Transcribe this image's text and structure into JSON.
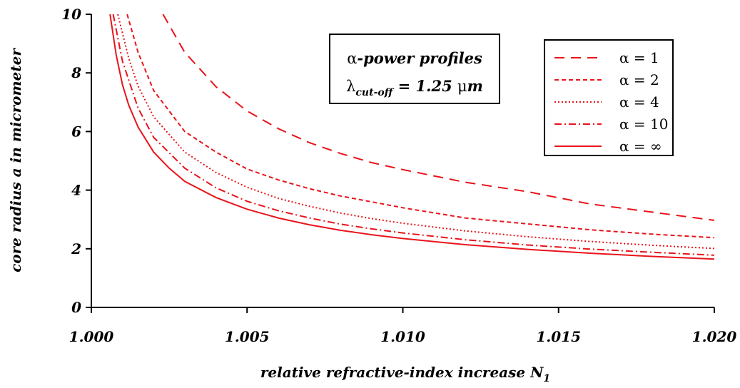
{
  "chart_data": {
    "type": "line",
    "xlabel": "relative refractive-index increase N",
    "xlabel_sub": "1",
    "ylabel": "core radius a in micrometer",
    "xlim": [
      1.0,
      1.02
    ],
    "ylim": [
      0,
      10
    ],
    "x_ticks": [
      1.0,
      1.005,
      1.01,
      1.015,
      1.02
    ],
    "x_tick_labels": [
      "1.000",
      "1.005",
      "1.010",
      "1.015",
      "1.020"
    ],
    "y_ticks": [
      0,
      2,
      4,
      6,
      8,
      10
    ],
    "y_tick_labels": [
      "0",
      "2",
      "4",
      "6",
      "8",
      "10"
    ],
    "grid": false,
    "legend_position": "top-right",
    "annotation": {
      "line1_symbol": "α",
      "line1_text": "-power profiles",
      "line2_symbol": "λ",
      "line2_sub": "cut-off",
      "line2_eq": " = 1.25 ",
      "line2_unit_mu": "μ",
      "line2_unit": "m"
    },
    "series": [
      {
        "name": "α = 1",
        "dash": "14,9",
        "x": [
          1.0023,
          1.003,
          1.004,
          1.005,
          1.006,
          1.007,
          1.008,
          1.009,
          1.01,
          1.012,
          1.014,
          1.016,
          1.018,
          1.02
        ],
        "y": [
          10.0,
          8.7,
          7.53,
          6.7,
          6.1,
          5.62,
          5.25,
          4.94,
          4.7,
          4.27,
          3.95,
          3.53,
          3.25,
          2.97
        ]
      },
      {
        "name": "α = 2",
        "dash": "6,4",
        "x": [
          1.00115,
          1.0015,
          1.002,
          1.003,
          1.004,
          1.005,
          1.006,
          1.007,
          1.008,
          1.009,
          1.01,
          1.012,
          1.014,
          1.016,
          1.018,
          1.02
        ],
        "y": [
          10.0,
          8.7,
          7.4,
          6.0,
          5.3,
          4.72,
          4.35,
          4.05,
          3.8,
          3.6,
          3.4,
          3.05,
          2.85,
          2.65,
          2.5,
          2.38
        ]
      },
      {
        "name": "α = 4",
        "dash": "2,3",
        "x": [
          1.00085,
          1.0012,
          1.0015,
          1.002,
          1.003,
          1.004,
          1.005,
          1.006,
          1.007,
          1.008,
          1.009,
          1.01,
          1.012,
          1.014,
          1.016,
          1.018,
          1.02
        ],
        "y": [
          10.0,
          8.5,
          7.55,
          6.5,
          5.3,
          4.6,
          4.1,
          3.72,
          3.45,
          3.22,
          3.03,
          2.87,
          2.61,
          2.41,
          2.25,
          2.12,
          2.01
        ]
      },
      {
        "name": "α = 10",
        "dash": "10,4,2,4",
        "x": [
          1.0007,
          1.001,
          1.0015,
          1.002,
          1.003,
          1.004,
          1.005,
          1.006,
          1.007,
          1.008,
          1.009,
          1.01,
          1.012,
          1.014,
          1.016,
          1.018,
          1.02
        ],
        "y": [
          10.0,
          8.4,
          6.8,
          5.8,
          4.75,
          4.08,
          3.62,
          3.3,
          3.05,
          2.84,
          2.68,
          2.54,
          2.31,
          2.13,
          1.99,
          1.88,
          1.78
        ]
      },
      {
        "name": "α = ∞",
        "dash": "",
        "x": [
          1.0006,
          1.0008,
          1.001,
          1.0012,
          1.0015,
          1.002,
          1.0025,
          1.003,
          1.004,
          1.005,
          1.006,
          1.007,
          1.008,
          1.009,
          1.01,
          1.012,
          1.014,
          1.016,
          1.018,
          1.02
        ],
        "y": [
          10.0,
          8.6,
          7.6,
          6.9,
          6.15,
          5.3,
          4.75,
          4.3,
          3.75,
          3.35,
          3.05,
          2.82,
          2.63,
          2.48,
          2.35,
          2.14,
          1.98,
          1.85,
          1.74,
          1.65
        ]
      }
    ],
    "line_color": "#e8141b"
  }
}
